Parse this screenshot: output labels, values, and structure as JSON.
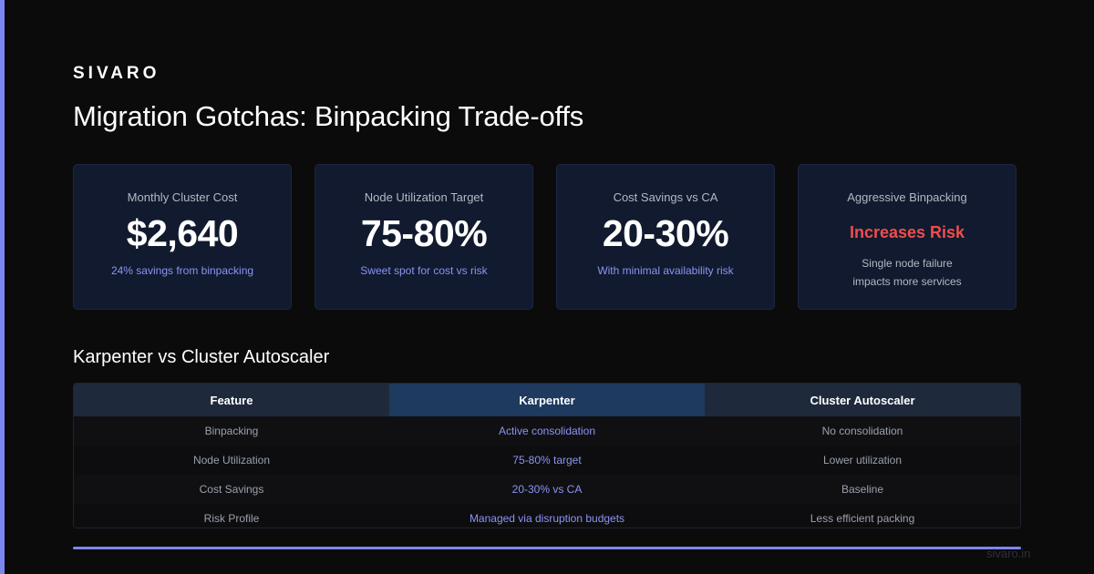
{
  "brand": "SIVARO",
  "title": "Migration Gotchas: Binpacking Trade-offs",
  "accent_color": "#7c86f0",
  "risk_color": "#f04d4d",
  "cards": [
    {
      "label": "Monthly Cluster Cost",
      "value": "$2,640",
      "sub": "24% savings from binpacking"
    },
    {
      "label": "Node Utilization Target",
      "value": "75-80%",
      "sub": "Sweet spot for cost vs risk"
    },
    {
      "label": "Cost Savings vs CA",
      "value": "20-30%",
      "sub": "With minimal availability risk"
    },
    {
      "label": "Aggressive Binpacking",
      "value": "Increases Risk",
      "desc_line1": "Single node failure",
      "desc_line2": "impacts more services"
    }
  ],
  "section_title": "Karpenter vs Cluster Autoscaler",
  "table": {
    "headers": [
      "Feature",
      "Karpenter",
      "Cluster Autoscaler"
    ],
    "rows": [
      [
        "Binpacking",
        "Active consolidation",
        "No consolidation"
      ],
      [
        "Node Utilization",
        "75-80% target",
        "Lower utilization"
      ],
      [
        "Cost Savings",
        "20-30% vs CA",
        "Baseline"
      ],
      [
        "Risk Profile",
        "Managed via disruption budgets",
        "Less efficient packing"
      ]
    ]
  },
  "progress": 1.0,
  "footer": "sivaro.in"
}
